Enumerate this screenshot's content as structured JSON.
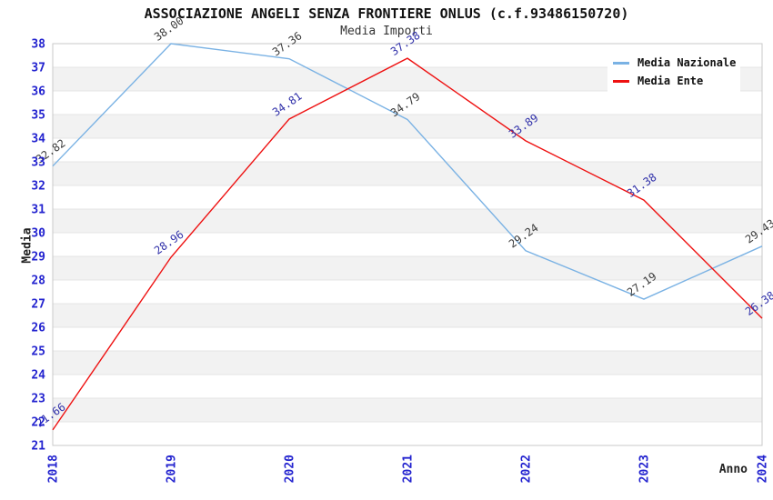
{
  "header": {
    "title": "ASSOCIAZIONE ANGELI SENZA FRONTIERE ONLUS (c.f.93486150720)",
    "subtitle": "Media Importi"
  },
  "legend": {
    "items": [
      {
        "label": "Media Nazionale",
        "color": "#7ab2e4"
      },
      {
        "label": "Media Ente",
        "color": "#ee1111"
      }
    ]
  },
  "axes": {
    "y_label": "Media",
    "x_label": "Anno",
    "y_ticks": [
      21,
      22,
      23,
      24,
      25,
      26,
      27,
      28,
      29,
      30,
      31,
      32,
      33,
      34,
      35,
      36,
      37,
      38
    ],
    "x_ticks": [
      "2018",
      "2019",
      "2020",
      "2021",
      "2022",
      "2023",
      "2024"
    ],
    "tick_color": "#2323cf"
  },
  "chart_data": {
    "type": "line",
    "title": "ASSOCIAZIONE ANGELI SENZA FRONTIERE ONLUS (c.f.93486150720)",
    "subtitle": "Media Importi",
    "xlabel": "Anno",
    "ylabel": "Media",
    "x": [
      2018,
      2019,
      2020,
      2021,
      2022,
      2023,
      2024
    ],
    "ylim": [
      21,
      38
    ],
    "grid": "horizontal gridlines with alternating shaded bands",
    "legend_position": "top-right",
    "series": [
      {
        "name": "Media Nazionale",
        "color": "#7ab2e4",
        "label_color": "#3c3c3c",
        "values": [
          32.82,
          38.0,
          37.36,
          34.79,
          29.24,
          27.19,
          29.43
        ]
      },
      {
        "name": "Media Ente",
        "color": "#ee1111",
        "label_color": "#3232aa",
        "values": [
          21.66,
          28.96,
          34.81,
          37.38,
          33.89,
          31.38,
          26.38
        ]
      }
    ],
    "style": {
      "band_fill": "#f2f2f2",
      "grid_line": "#e4e4e4",
      "plot_border": "#c9c9c9",
      "plot_bg": "#ffffff"
    }
  }
}
